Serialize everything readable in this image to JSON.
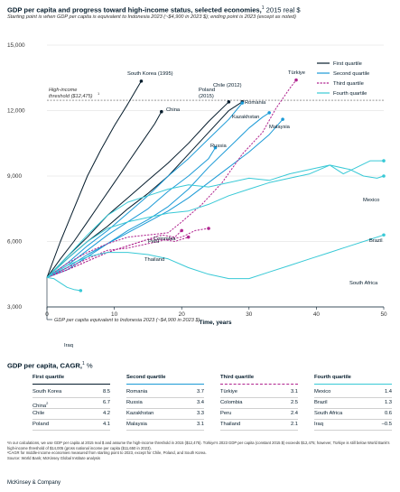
{
  "header": {
    "title": "GDP per capita and progress toward high-income status, selected economies,",
    "title_sup": "1",
    "title_unit": " 2015 real $",
    "subtitle": "Starting point is when GDP per capita is equivalent to Indonesia 2023 (~$4,900 in 2023 $); ending point is 2023 (except as noted)"
  },
  "chart_data": {
    "type": "line",
    "xlabel": "Time, years",
    "ylabel": "",
    "xlim": [
      0,
      50
    ],
    "ylim": [
      3000,
      15000
    ],
    "x_ticks": [
      0,
      10,
      20,
      30,
      40,
      50
    ],
    "y_ticks": [
      3000,
      6000,
      9000,
      12000,
      15000
    ],
    "y_tick_labels": [
      "3,000",
      "6,000",
      "9,000",
      "12,000",
      "15,000"
    ],
    "legend_position": "top-right",
    "legend": [
      {
        "label": "First quartile",
        "color": "#051c2c",
        "dash": false
      },
      {
        "label": "Second quartile",
        "color": "#1b9ad6",
        "dash": false
      },
      {
        "label": "Third quartile",
        "color": "#b0248f",
        "dash": true
      },
      {
        "label": "Fourth quartile",
        "color": "#38c9d6",
        "dash": false
      }
    ],
    "reference_lines": [
      {
        "y": 12475,
        "label_line1": "High-income",
        "label_line2": "threshold ($12,475)",
        "label_sup": "1"
      },
      {
        "y": 4350,
        "label": "GDP per capita equivalent to Indonesia 2023 (~$4,900 in 2023 $)"
      }
    ],
    "series": [
      {
        "name": "South Korea (1995)",
        "quartile": 1,
        "x": [
          0,
          2,
          4,
          6,
          8,
          10,
          12,
          14
        ],
        "y": [
          4350,
          6000,
          7500,
          9000,
          10200,
          11300,
          12300,
          13350
        ]
      },
      {
        "name": "China",
        "quartile": 1,
        "x": [
          0,
          2,
          4,
          6,
          8,
          10,
          12,
          14,
          16,
          17
        ],
        "y": [
          4350,
          5200,
          6000,
          6900,
          7800,
          8700,
          9600,
          10500,
          11400,
          11950
        ]
      },
      {
        "name": "Poland (2015)",
        "quartile": 1,
        "x": [
          0,
          3,
          6,
          9,
          12,
          15,
          18,
          21,
          24,
          27
        ],
        "y": [
          4350,
          5300,
          6200,
          7200,
          8000,
          8800,
          9600,
          10500,
          11500,
          12400
        ]
      },
      {
        "name": "Chile (2012)",
        "quartile": 1,
        "x": [
          0,
          3,
          6,
          9,
          12,
          15,
          18,
          21,
          24,
          27,
          29
        ],
        "y": [
          4350,
          5200,
          6000,
          6700,
          7500,
          8200,
          9000,
          10000,
          11000,
          12000,
          12400
        ]
      },
      {
        "name": "Romania",
        "quartile": 2,
        "x": [
          0,
          3,
          6,
          9,
          12,
          15,
          18,
          21,
          24,
          27,
          29
        ],
        "y": [
          4350,
          5000,
          5800,
          6500,
          7300,
          8100,
          9000,
          9800,
          10700,
          11600,
          12350
        ]
      },
      {
        "name": "Russia",
        "quartile": 2,
        "x": [
          0,
          3,
          6,
          9,
          12,
          15,
          18,
          21,
          24,
          25
        ],
        "y": [
          4350,
          4900,
          5600,
          6300,
          6900,
          7500,
          8300,
          9000,
          9800,
          10300
        ]
      },
      {
        "name": "Kazakhstan",
        "quartile": 2,
        "x": [
          0,
          3,
          6,
          9,
          12,
          15,
          18,
          21,
          24,
          27,
          29,
          30,
          32,
          33
        ],
        "y": [
          4350,
          4700,
          5300,
          5900,
          6500,
          7000,
          7600,
          8400,
          9400,
          10300,
          10900,
          11200,
          11700,
          11900
        ]
      },
      {
        "name": "Malaysia",
        "quartile": 2,
        "x": [
          0,
          3,
          6,
          9,
          12,
          15,
          18,
          21,
          24,
          27,
          30,
          33,
          35
        ],
        "y": [
          4350,
          4800,
          5400,
          5900,
          6400,
          6900,
          7400,
          8000,
          8700,
          9400,
          10100,
          10900,
          11600
        ]
      },
      {
        "name": "Türkiye",
        "quartile": 3,
        "x": [
          0,
          3,
          6,
          9,
          12,
          15,
          18,
          20,
          23,
          26,
          29,
          32,
          34,
          36,
          37
        ],
        "y": [
          4350,
          5000,
          5500,
          5900,
          6200,
          6300,
          6400,
          6900,
          7700,
          8700,
          10000,
          11000,
          12100,
          13000,
          13400
        ]
      },
      {
        "name": "Colombia",
        "quartile": 3,
        "x": [
          0,
          3,
          6,
          9,
          12,
          15,
          18,
          20,
          22,
          24
        ],
        "y": [
          4350,
          4800,
          5200,
          5600,
          5700,
          5900,
          6100,
          6200,
          6500,
          6600
        ]
      },
      {
        "name": "Peru",
        "quartile": 3,
        "x": [
          0,
          3,
          6,
          9,
          12,
          15,
          17,
          19,
          20
        ],
        "y": [
          4350,
          4700,
          5100,
          5500,
          5800,
          6100,
          6300,
          6200,
          6500
        ]
      },
      {
        "name": "Thailand",
        "quartile": 3,
        "x": [
          0,
          3,
          6,
          9,
          12,
          15,
          17,
          19,
          21
        ],
        "y": [
          4350,
          4700,
          5100,
          5500,
          5800,
          6100,
          6100,
          6000,
          6200
        ]
      },
      {
        "name": "Mexico",
        "quartile": 4,
        "x": [
          0,
          3,
          6,
          9,
          12,
          15,
          18,
          21,
          24,
          27,
          30,
          33,
          36,
          39,
          42,
          44,
          46,
          48,
          50
        ],
        "y": [
          4350,
          5300,
          6300,
          7200,
          7800,
          8100,
          8400,
          8600,
          8500,
          8700,
          8900,
          8800,
          9100,
          9300,
          9500,
          9100,
          9400,
          9700,
          9700
        ]
      },
      {
        "name": "Brazil",
        "quartile": 4,
        "x": [
          0,
          3,
          6,
          9,
          12,
          15,
          18,
          21,
          24,
          27,
          30,
          33,
          36,
          39,
          42,
          45,
          47,
          49,
          50
        ],
        "y": [
          4350,
          5200,
          6000,
          6600,
          6900,
          7100,
          7300,
          7400,
          7700,
          8100,
          8400,
          8700,
          8900,
          9100,
          9500,
          9300,
          9000,
          8900,
          9000
        ]
      },
      {
        "name": "South Africa",
        "quartile": 4,
        "x": [
          0,
          3,
          6,
          9,
          12,
          15,
          18,
          21,
          24,
          27,
          30,
          33,
          36,
          39,
          42,
          45,
          48,
          50
        ],
        "y": [
          4350,
          4900,
          5300,
          5500,
          5500,
          5400,
          5200,
          4800,
          4500,
          4300,
          4300,
          4600,
          4900,
          5200,
          5500,
          5800,
          6100,
          6300
        ]
      },
      {
        "name": "Iraq",
        "quartile": 4,
        "x": [
          0,
          1,
          2,
          3,
          4,
          5
        ],
        "y": [
          4350,
          4300,
          4100,
          3900,
          3800,
          3750
        ]
      }
    ],
    "series_labels": [
      "South Korea (1995)",
      "China",
      "Poland",
      "(2015)",
      "Chile (2012)",
      "Romania",
      "Russia",
      "Kazakhstan",
      "Malaysia",
      "Türkiye",
      "Colombia",
      "Peru",
      "Thailand",
      "Mexico",
      "Brazil",
      "South Africa",
      "Iraq"
    ]
  },
  "cagr": {
    "title": "GDP per capita, CAGR,",
    "title_sup": "1",
    "title_unit": " %",
    "quartiles": [
      {
        "key": "q1",
        "label": "First quartile",
        "rows": [
          {
            "name": "South Korea",
            "sup": "",
            "value": "8.5"
          },
          {
            "name": "China",
            "sup": "2",
            "value": "6.7"
          },
          {
            "name": "Chile",
            "sup": "",
            "value": "4.2"
          },
          {
            "name": "Poland",
            "sup": "",
            "value": "4.1"
          }
        ]
      },
      {
        "key": "q2",
        "label": "Second quartile",
        "rows": [
          {
            "name": "Romania",
            "sup": "",
            "value": "3.7"
          },
          {
            "name": "Russia",
            "sup": "",
            "value": "3.4"
          },
          {
            "name": "Kazakhstan",
            "sup": "",
            "value": "3.3"
          },
          {
            "name": "Malaysia",
            "sup": "",
            "value": "3.1"
          }
        ]
      },
      {
        "key": "q3",
        "label": "Third quartile",
        "rows": [
          {
            "name": "Türkiye",
            "sup": "",
            "value": "3.1"
          },
          {
            "name": "Colombia",
            "sup": "",
            "value": "2.5"
          },
          {
            "name": "Peru",
            "sup": "",
            "value": "2.4"
          },
          {
            "name": "Thailand",
            "sup": "",
            "value": "2.1"
          }
        ]
      },
      {
        "key": "q4",
        "label": "Fourth quartile",
        "rows": [
          {
            "name": "Mexico",
            "sup": "",
            "value": "1.4"
          },
          {
            "name": "Brazil",
            "sup": "",
            "value": "1.3"
          },
          {
            "name": "South Africa",
            "sup": "",
            "value": "0.6"
          },
          {
            "name": "Iraq",
            "sup": "",
            "value": "–0.5"
          }
        ]
      }
    ]
  },
  "footnotes": {
    "note1": "¹In our calculations, we use GDP per capita at 2015 real $ and assume the high-income threshold in 2015 ($12,475). Türkiye's 2023 GDP per capita (constant 2015 $) exceeds $12,475; however, Türkiye is still below World Bank's high-income threshold of $14,005 (gross national income per capita ($11,650 in 2023).",
    "note2": "²CAGR for middle-income economies measured from starting point to 2023, except for Chile, Poland, and South Korea.",
    "source": "Source: World Bank; McKinsey Global Institute analysis"
  },
  "brand": "McKinsey & Company",
  "colors": {
    "q1": "#051c2c",
    "q2": "#1b9ad6",
    "q3": "#b0248f",
    "q4": "#38c9d6",
    "grid": "#d9d9d9",
    "text": "#051c2c"
  }
}
